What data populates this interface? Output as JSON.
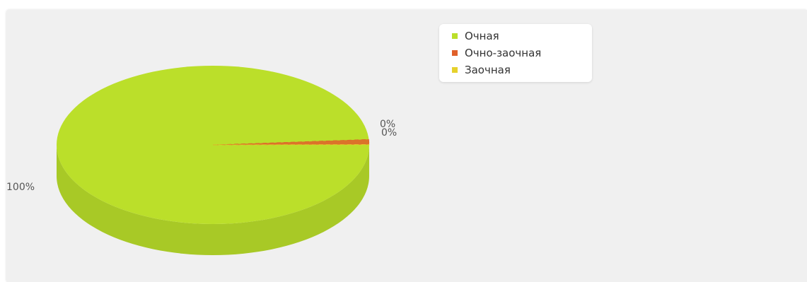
{
  "chart_data": {
    "type": "pie",
    "style": "3d",
    "slices": [
      {
        "name": "Очная",
        "value": 100,
        "label": "100%",
        "color": "#bbdf2a"
      },
      {
        "name": "Очно-заочная",
        "value": 0,
        "label": "0%",
        "color": "#e0602a"
      },
      {
        "name": "Заочная",
        "value": 0,
        "label": "0%",
        "color": "#e6d12c"
      }
    ],
    "legend_position": "top-right"
  }
}
